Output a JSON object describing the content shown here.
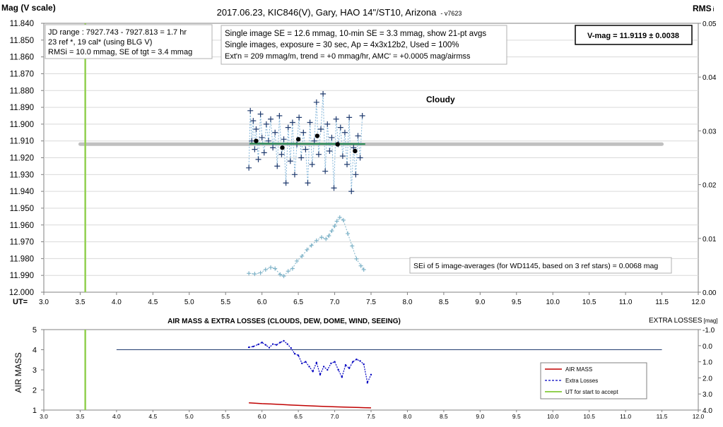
{
  "top_chart": {
    "title": "2017.06.23,  KIC846(V),  Gary,  HAO 14\"/ST10, Arizona",
    "version": "- v7623",
    "left_axis_title": "Mag (V scale)",
    "right_axis_title": "RMS",
    "right_axis_title_sub": "i",
    "x_axis_prefix": "UT=",
    "cloudy_label": "Cloudy",
    "info_box_1": [
      "JD range : 7927.743 - 7927.813 = 1.7 hr",
      "23 ref *, 19 cal* (using BLG V)",
      "RMSi = 10.0 mmag, SE of tgt = 3.4 mmag"
    ],
    "info_box_2": [
      "Single image SE = 12.6 mmag, 10-min SE = 3.3 mmag, show  21-pt avgs",
      "Single images, exposure = 30 sec, Ap = 4x3x12b2, Used = 100%",
      "Ext'n = 209 mmag/m, trend = +0 mmag/hr, AMC' = +0.0005 mag/airmss"
    ],
    "vmag_box": "V-mag = 11.9119 ± 0.0038",
    "sei_box": "SEi of 5 image-averages (for WD1145, based on 3 ref stars) = 0.0068 mag",
    "x_ticks": [
      "3.0",
      "3.5",
      "4.0",
      "4.5",
      "5.0",
      "5.5",
      "6.0",
      "6.5",
      "7.0",
      "7.5",
      "8.0",
      "8.5",
      "9.0",
      "9.5",
      "10.0",
      "10.5",
      "11.0",
      "11.5",
      "12.0"
    ],
    "y_ticks": [
      "11.840",
      "11.850",
      "11.860",
      "11.870",
      "11.880",
      "11.890",
      "11.900",
      "11.910",
      "11.920",
      "11.930",
      "11.940",
      "11.950",
      "11.960",
      "11.970",
      "11.980",
      "11.990",
      "12.000"
    ],
    "y2_ticks": [
      "0.05",
      "0.04",
      "0.03",
      "0.02",
      "0.01",
      "0.00"
    ]
  },
  "bottom_chart": {
    "title": "AIR MASS & EXTRA LOSSES (CLOUDS, DEW, DOME, WIND, SEEING)",
    "left_axis_title": "AIR MASS",
    "right_axis_title": "EXTRA LOSSES",
    "right_axis_unit": "[mag]",
    "x_ticks": [
      "3.0",
      "3.5",
      "4.0",
      "4.5",
      "5.0",
      "5.5",
      "6.0",
      "6.5",
      "7.0",
      "7.5",
      "8.0",
      "8.5",
      "9.0",
      "9.5",
      "10.0",
      "10.5",
      "11.0",
      "11.5",
      "12.0"
    ],
    "y_ticks": [
      "5",
      "4",
      "3",
      "2",
      "1"
    ],
    "y2_ticks": [
      "-1.0",
      "0.0",
      "1.0",
      "2.0",
      "3.0",
      "4.0"
    ],
    "legend": [
      {
        "label": "AIR MASS",
        "color": "#c00000"
      },
      {
        "label": "Extra Losses",
        "color": "#0000c0"
      },
      {
        "label": "UT for start to accept",
        "color": "#92d050"
      }
    ]
  },
  "chart_data": [
    {
      "type": "scatter",
      "xlim": [
        3.0,
        12.0
      ],
      "ylim": [
        12.0,
        11.84
      ],
      "y2lim": [
        0.0,
        0.05
      ],
      "grid": true,
      "series": [
        {
          "label": "single images",
          "color": "#1f3a6e",
          "x": [
            5.82,
            5.84,
            5.86,
            5.88,
            5.9,
            5.92,
            5.95,
            5.98,
            6.0,
            6.03,
            6.06,
            6.09,
            6.12,
            6.15,
            6.18,
            6.21,
            6.24,
            6.27,
            6.3,
            6.33,
            6.36,
            6.39,
            6.42,
            6.45,
            6.48,
            6.51,
            6.54,
            6.57,
            6.6,
            6.63,
            6.66,
            6.69,
            6.72,
            6.75,
            6.78,
            6.81,
            6.84,
            6.87,
            6.9,
            6.93,
            6.96,
            6.99,
            7.02,
            7.05,
            7.08,
            7.11,
            7.14,
            7.17,
            7.2,
            7.23,
            7.26,
            7.29,
            7.32,
            7.35,
            7.38
          ],
          "y": [
            11.926,
            11.892,
            11.91,
            11.898,
            11.915,
            11.903,
            11.921,
            11.894,
            11.908,
            11.917,
            11.9,
            11.91,
            11.897,
            11.914,
            11.905,
            11.925,
            11.895,
            11.918,
            11.909,
            11.935,
            11.902,
            11.922,
            11.899,
            11.93,
            11.912,
            11.896,
            11.92,
            11.905,
            11.915,
            11.935,
            11.899,
            11.924,
            11.91,
            11.887,
            11.918,
            11.903,
            11.882,
            11.928,
            11.9,
            11.916,
            11.908,
            11.938,
            11.897,
            11.912,
            11.902,
            11.919,
            11.905,
            11.924,
            11.896,
            11.94,
            11.914,
            11.93,
            11.907,
            11.92,
            11.895
          ]
        },
        {
          "label": "21-pt avgs",
          "color": "#000000",
          "x": [
            5.92,
            6.28,
            6.5,
            6.76,
            7.04,
            7.28
          ],
          "y": [
            11.91,
            11.914,
            11.909,
            11.907,
            11.912,
            11.916
          ]
        },
        {
          "label": "V-mag level",
          "color": "#c0c0c0",
          "x": [
            3.5,
            11.5
          ],
          "y": [
            11.9119,
            11.9119
          ]
        },
        {
          "label": "trend",
          "color": "#2e8b57",
          "x": [
            5.83,
            7.42
          ],
          "y": [
            11.9116,
            11.9118
          ]
        },
        {
          "label": "RMSi",
          "color": "#7fb3c8",
          "axis": "right",
          "x": [
            5.82,
            5.9,
            5.98,
            6.05,
            6.12,
            6.18,
            6.25,
            6.3,
            6.36,
            6.42,
            6.48,
            6.55,
            6.62,
            6.68,
            6.75,
            6.82,
            6.88,
            6.92,
            6.96,
            7.0,
            7.03,
            7.07,
            7.12,
            7.18,
            7.24,
            7.3,
            7.36,
            7.4
          ],
          "y": [
            0.0035,
            0.0034,
            0.0036,
            0.0042,
            0.0046,
            0.0044,
            0.0033,
            0.003,
            0.0039,
            0.0044,
            0.0058,
            0.0067,
            0.0079,
            0.0087,
            0.0096,
            0.0102,
            0.0099,
            0.0105,
            0.0114,
            0.0123,
            0.0132,
            0.0139,
            0.0134,
            0.0109,
            0.0086,
            0.0062,
            0.0049,
            0.0042
          ]
        }
      ],
      "vlines": [
        {
          "x": 3.57,
          "color": "#92d050"
        }
      ]
    },
    {
      "type": "line",
      "xlim": [
        3.0,
        12.0
      ],
      "ylim": [
        1,
        5
      ],
      "y2lim": [
        4.0,
        -1.0
      ],
      "grid": false,
      "series": [
        {
          "name": "AIR MASS",
          "color": "#c00000",
          "x": [
            5.82,
            6.0,
            6.2,
            6.4,
            6.6,
            6.8,
            7.0,
            7.2,
            7.4,
            7.5
          ],
          "y": [
            1.36,
            1.32,
            1.29,
            1.25,
            1.22,
            1.19,
            1.16,
            1.14,
            1.12,
            1.11
          ]
        },
        {
          "name": "Extra Losses",
          "color": "#0000c0",
          "axis": "right",
          "x": [
            5.82,
            5.88,
            5.95,
            6.0,
            6.05,
            6.1,
            6.15,
            6.2,
            6.25,
            6.3,
            6.35,
            6.4,
            6.45,
            6.5,
            6.55,
            6.6,
            6.65,
            6.7,
            6.75,
            6.8,
            6.85,
            6.9,
            6.95,
            7.0,
            7.05,
            7.1,
            7.15,
            7.2,
            7.25,
            7.3,
            7.35,
            7.4,
            7.45,
            7.5
          ],
          "y": [
            0.1,
            0.05,
            -0.08,
            -0.2,
            -0.05,
            0.12,
            -0.1,
            -0.05,
            -0.2,
            -0.3,
            -0.1,
            0.15,
            0.5,
            0.6,
            1.1,
            1.0,
            1.3,
            1.6,
            1.05,
            1.8,
            1.3,
            1.5,
            1.1,
            1.0,
            1.5,
            1.95,
            1.2,
            1.4,
            1.0,
            0.85,
            0.95,
            1.15,
            2.3,
            1.8
          ]
        },
        {
          "name": "constant",
          "color": "#1f3a6e",
          "x": [
            4.0,
            11.5
          ],
          "y": [
            4,
            4
          ]
        }
      ],
      "vlines": [
        {
          "x": 3.57,
          "color": "#92d050"
        }
      ]
    }
  ]
}
